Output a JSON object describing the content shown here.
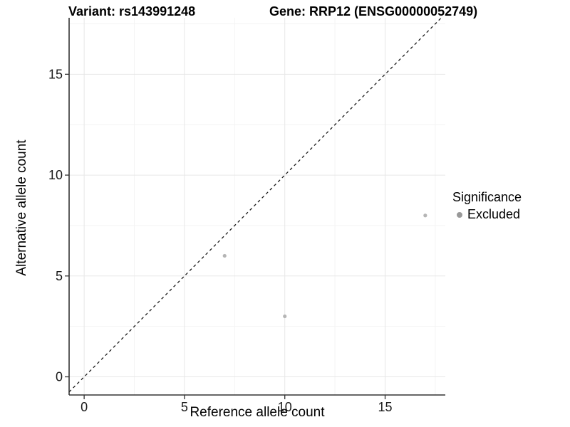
{
  "chart_data": {
    "type": "scatter",
    "title_left": "Variant: rs143991248",
    "title_right": "Gene: RRP12 (ENSG00000052749)",
    "xlabel": "Reference allele count",
    "ylabel": "Alternative allele count",
    "xlim": [
      -0.75,
      18.0
    ],
    "ylim": [
      -0.9,
      17.8
    ],
    "xticks": [
      0,
      5,
      10,
      15
    ],
    "yticks": [
      0,
      5,
      10,
      15
    ],
    "xminor": [
      2.5,
      7.5,
      12.5,
      17.5
    ],
    "yminor": [
      2.5,
      7.5,
      12.5,
      17.5
    ],
    "grid": "major and minor gridlines on, white panel background",
    "identity_line": {
      "slope": 1,
      "intercept": 0,
      "style": "dashed",
      "color": "#1a1a1a"
    },
    "series": [
      {
        "name": "Excluded",
        "color": "#b5b5b5",
        "points": [
          [
            7,
            6
          ],
          [
            10,
            3
          ],
          [
            17,
            8
          ]
        ]
      }
    ],
    "legend": {
      "title": "Significance",
      "position": "right",
      "entries": [
        {
          "label": "Excluded",
          "color": "#999999"
        }
      ]
    },
    "colors": {
      "grid_major": "#e7e7e7",
      "grid_minor": "#f4f4f4",
      "axis_line": "#333333",
      "tick_label": "#1a1a1a"
    }
  }
}
